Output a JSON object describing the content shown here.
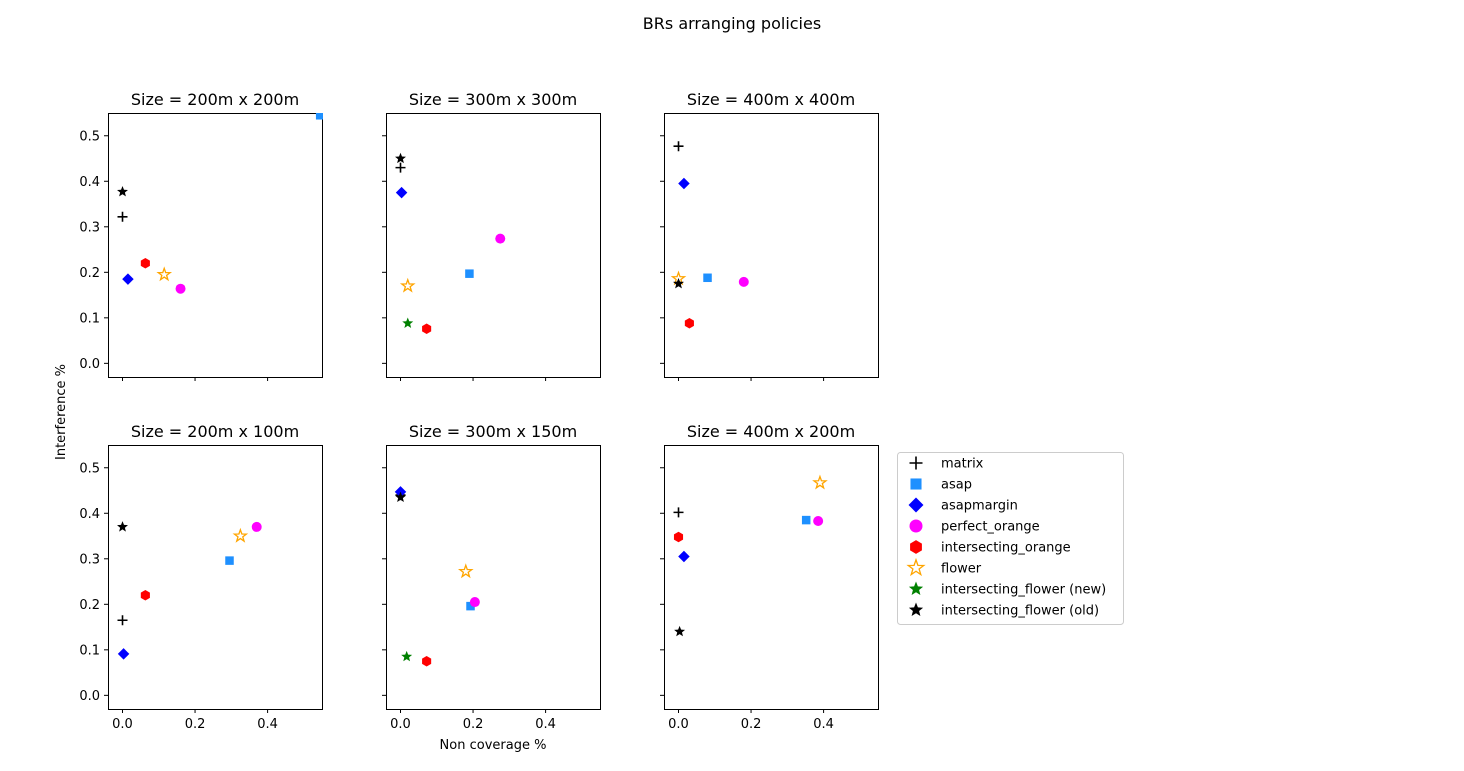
{
  "figure": {
    "suptitle": "BRs arranging policies",
    "xlabel": "Non coverage %",
    "ylabel": "Interference %"
  },
  "legend": {
    "placement": "right of subplots",
    "entries": [
      {
        "label": "matrix",
        "marker": "plus",
        "color": "#000000"
      },
      {
        "label": "asap",
        "marker": "square",
        "color": "#1e90ff"
      },
      {
        "label": "asapmargin",
        "marker": "diamond",
        "color": "#0000ff"
      },
      {
        "label": "perfect_orange",
        "marker": "circle",
        "color": "#ff00ff"
      },
      {
        "label": "intersecting_orange",
        "marker": "hexagon",
        "color": "#ff0000"
      },
      {
        "label": "flower",
        "marker": "star-open",
        "color": "#ffa500"
      },
      {
        "label": "intersecting_flower (new)",
        "marker": "star",
        "color": "#008000"
      },
      {
        "label": "intersecting_flower (old)",
        "marker": "star",
        "color": "#000000"
      }
    ]
  },
  "axes": {
    "xlim": [
      -0.04,
      0.55
    ],
    "ylim": [
      -0.03,
      0.55
    ],
    "xticks": [
      0.0,
      0.2,
      0.4
    ],
    "xtick_labels": [
      "0.0",
      "0.2",
      "0.4"
    ],
    "yticks": [
      0.0,
      0.1,
      0.2,
      0.3,
      0.4,
      0.5
    ],
    "ytick_labels": [
      "0.0",
      "0.1",
      "0.2",
      "0.3",
      "0.4",
      "0.5"
    ],
    "sharex": true,
    "sharey": true,
    "grid": false
  },
  "chart_data": [
    {
      "type": "scatter",
      "title": "Size = 200m x 200m",
      "series": [
        {
          "name": "matrix",
          "points": [
            {
              "x": 0.0,
              "y": 0.322
            }
          ]
        },
        {
          "name": "asap",
          "points": [
            {
              "x": 0.545,
              "y": 0.545
            }
          ]
        },
        {
          "name": "asapmargin",
          "points": [
            {
              "x": 0.015,
              "y": 0.185
            }
          ]
        },
        {
          "name": "perfect_orange",
          "points": [
            {
              "x": 0.16,
              "y": 0.164
            }
          ]
        },
        {
          "name": "intersecting_orange",
          "points": [
            {
              "x": 0.063,
              "y": 0.22
            }
          ]
        },
        {
          "name": "flower",
          "points": [
            {
              "x": 0.115,
              "y": 0.195
            }
          ]
        },
        {
          "name": "intersecting_flower (new)",
          "points": []
        },
        {
          "name": "intersecting_flower (old)",
          "points": [
            {
              "x": 0.0,
              "y": 0.377
            }
          ]
        }
      ]
    },
    {
      "type": "scatter",
      "title": "Size = 300m x 300m",
      "series": [
        {
          "name": "matrix",
          "points": [
            {
              "x": 0.0,
              "y": 0.43
            }
          ]
        },
        {
          "name": "asap",
          "points": [
            {
              "x": 0.19,
              "y": 0.197
            }
          ]
        },
        {
          "name": "asapmargin",
          "points": [
            {
              "x": 0.003,
              "y": 0.375
            }
          ]
        },
        {
          "name": "perfect_orange",
          "points": [
            {
              "x": 0.275,
              "y": 0.274
            }
          ]
        },
        {
          "name": "intersecting_orange",
          "points": [
            {
              "x": 0.072,
              "y": 0.076
            }
          ]
        },
        {
          "name": "flower",
          "points": [
            {
              "x": 0.02,
              "y": 0.17
            }
          ]
        },
        {
          "name": "intersecting_flower (new)",
          "points": [
            {
              "x": 0.02,
              "y": 0.088
            }
          ]
        },
        {
          "name": "intersecting_flower (old)",
          "points": [
            {
              "x": 0.0,
              "y": 0.45
            }
          ]
        }
      ]
    },
    {
      "type": "scatter",
      "title": "Size = 400m x 400m",
      "series": [
        {
          "name": "matrix",
          "points": [
            {
              "x": 0.0,
              "y": 0.477
            }
          ]
        },
        {
          "name": "asap",
          "points": [
            {
              "x": 0.08,
              "y": 0.188
            }
          ]
        },
        {
          "name": "asapmargin",
          "points": [
            {
              "x": 0.015,
              "y": 0.395
            }
          ]
        },
        {
          "name": "perfect_orange",
          "points": [
            {
              "x": 0.18,
              "y": 0.179
            }
          ]
        },
        {
          "name": "intersecting_orange",
          "points": [
            {
              "x": 0.03,
              "y": 0.088
            }
          ]
        },
        {
          "name": "flower",
          "points": [
            {
              "x": 0.0,
              "y": 0.186
            }
          ]
        },
        {
          "name": "intersecting_flower (new)",
          "points": []
        },
        {
          "name": "intersecting_flower (old)",
          "points": [
            {
              "x": 0.0,
              "y": 0.175
            }
          ]
        }
      ]
    },
    {
      "type": "scatter",
      "title": "Size = 200m x 100m",
      "series": [
        {
          "name": "matrix",
          "points": [
            {
              "x": 0.0,
              "y": 0.165
            }
          ]
        },
        {
          "name": "asap",
          "points": [
            {
              "x": 0.295,
              "y": 0.296
            }
          ]
        },
        {
          "name": "asapmargin",
          "points": [
            {
              "x": 0.003,
              "y": 0.091
            }
          ]
        },
        {
          "name": "perfect_orange",
          "points": [
            {
              "x": 0.37,
              "y": 0.37
            }
          ]
        },
        {
          "name": "intersecting_orange",
          "points": [
            {
              "x": 0.063,
              "y": 0.22
            }
          ]
        },
        {
          "name": "flower",
          "points": [
            {
              "x": 0.325,
              "y": 0.35
            }
          ]
        },
        {
          "name": "intersecting_flower (new)",
          "points": []
        },
        {
          "name": "intersecting_flower (old)",
          "points": [
            {
              "x": 0.0,
              "y": 0.37
            }
          ]
        }
      ]
    },
    {
      "type": "scatter",
      "title": "Size = 300m x 150m",
      "series": [
        {
          "name": "matrix",
          "points": [
            {
              "x": 0.0,
              "y": 0.44
            }
          ]
        },
        {
          "name": "asap",
          "points": [
            {
              "x": 0.193,
              "y": 0.196
            }
          ]
        },
        {
          "name": "asapmargin",
          "points": [
            {
              "x": 0.0,
              "y": 0.447
            }
          ]
        },
        {
          "name": "perfect_orange",
          "points": [
            {
              "x": 0.205,
              "y": 0.205
            }
          ]
        },
        {
          "name": "intersecting_orange",
          "points": [
            {
              "x": 0.072,
              "y": 0.075
            }
          ]
        },
        {
          "name": "flower",
          "points": [
            {
              "x": 0.18,
              "y": 0.272
            }
          ]
        },
        {
          "name": "intersecting_flower (new)",
          "points": [
            {
              "x": 0.017,
              "y": 0.085
            }
          ]
        },
        {
          "name": "intersecting_flower (old)",
          "points": [
            {
              "x": 0.0,
              "y": 0.435
            }
          ]
        }
      ]
    },
    {
      "type": "scatter",
      "title": "Size = 400m x 200m",
      "series": [
        {
          "name": "matrix",
          "points": [
            {
              "x": 0.0,
              "y": 0.402
            }
          ]
        },
        {
          "name": "asap",
          "points": [
            {
              "x": 0.352,
              "y": 0.385
            }
          ]
        },
        {
          "name": "asapmargin",
          "points": [
            {
              "x": 0.015,
              "y": 0.305
            }
          ]
        },
        {
          "name": "perfect_orange",
          "points": [
            {
              "x": 0.385,
              "y": 0.383
            }
          ]
        },
        {
          "name": "intersecting_orange",
          "points": [
            {
              "x": 0.0,
              "y": 0.348
            }
          ]
        },
        {
          "name": "flower",
          "points": [
            {
              "x": 0.39,
              "y": 0.467
            }
          ]
        },
        {
          "name": "intersecting_flower (new)",
          "points": []
        },
        {
          "name": "intersecting_flower (old)",
          "points": [
            {
              "x": 0.003,
              "y": 0.14
            }
          ]
        }
      ]
    }
  ]
}
